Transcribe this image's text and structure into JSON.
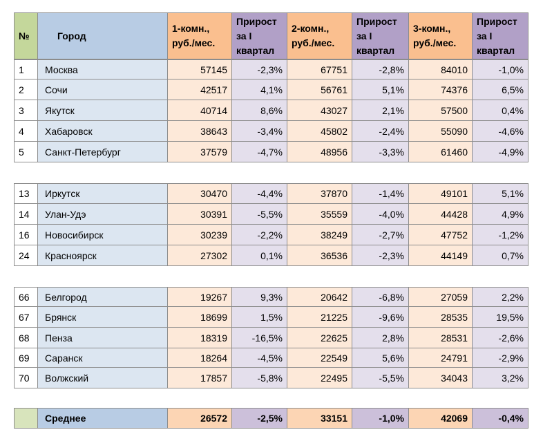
{
  "header": [
    [
      "№"
    ],
    [
      "Город"
    ],
    [
      "1-комн.,",
      "руб./мес."
    ],
    [
      "Прирост",
      "за I",
      "квартал"
    ],
    [
      "2-комн.,",
      "руб./мес."
    ],
    [
      "Прирост",
      "за I",
      "квартал"
    ],
    [
      "3-комн.,",
      "руб./мес."
    ],
    [
      "Прирост",
      "за I",
      "квартал"
    ]
  ],
  "groups": [
    [
      [
        "1",
        "Москва",
        "57145",
        "-2,3%",
        "67751",
        "-2,8%",
        "84010",
        "-1,0%"
      ],
      [
        "2",
        "Сочи",
        "42517",
        "4,1%",
        "56761",
        "5,1%",
        "74376",
        "6,5%"
      ],
      [
        "3",
        "Якутск",
        "40714",
        "8,6%",
        "43027",
        "2,1%",
        "57500",
        "0,4%"
      ],
      [
        "4",
        "Хабаровск",
        "38643",
        "-3,4%",
        "45802",
        "-2,4%",
        "55090",
        "-4,6%"
      ],
      [
        "5",
        "Санкт-Петербург",
        "37579",
        "-4,7%",
        "48956",
        "-3,3%",
        "61460",
        "-4,9%"
      ]
    ],
    [
      [
        "13",
        "Иркутск",
        "30470",
        "-4,4%",
        "37870",
        "-1,4%",
        "49101",
        "5,1%"
      ],
      [
        "14",
        "Улан-Удэ",
        "30391",
        "-5,5%",
        "35559",
        "-4,0%",
        "44428",
        "4,9%"
      ],
      [
        "16",
        "Новосибирск",
        "30239",
        "-2,2%",
        "38249",
        "-2,7%",
        "47752",
        "-1,2%"
      ],
      [
        "24",
        "Красноярск",
        "27302",
        "0,1%",
        "36536",
        "-2,3%",
        "44149",
        "0,7%"
      ]
    ],
    [
      [
        "66",
        "Белгород",
        "19267",
        "9,3%",
        "20642",
        "-6,8%",
        "27059",
        "2,2%"
      ],
      [
        "67",
        "Брянск",
        "18699",
        "1,5%",
        "21225",
        "-9,6%",
        "28535",
        "19,5%"
      ],
      [
        "68",
        "Пенза",
        "18319",
        "-16,5%",
        "22625",
        "2,8%",
        "28531",
        "-2,6%"
      ],
      [
        "69",
        "Саранск",
        "18264",
        "-4,5%",
        "22549",
        "5,6%",
        "24791",
        "-2,9%"
      ],
      [
        "70",
        "Волжский",
        "17857",
        "-5,8%",
        "22495",
        "-5,5%",
        "34043",
        "3,2%"
      ]
    ]
  ],
  "footer": {
    "label": "Среднее",
    "values": [
      "26572",
      "-2,5%",
      "33151",
      "-1,0%",
      "42069",
      "-0,4%"
    ]
  }
}
